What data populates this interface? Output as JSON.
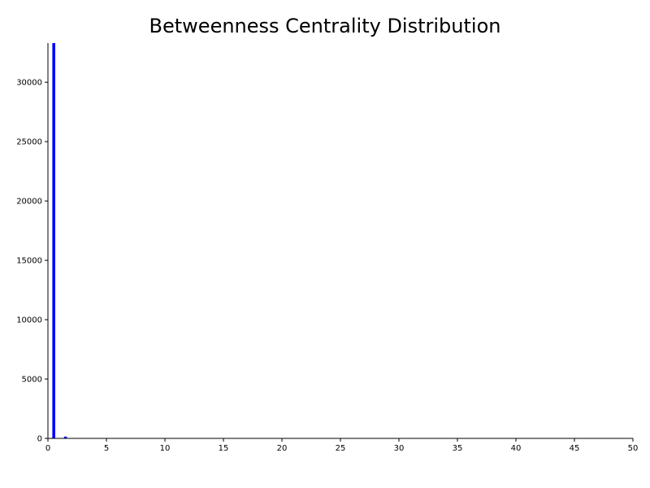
{
  "chart_data": {
    "type": "bar",
    "title": "Betweenness Centrality Distribution",
    "xlabel": "",
    "ylabel": "",
    "xlim": [
      0,
      50
    ],
    "ylim": [
      0,
      33300
    ],
    "x_ticks": [
      0,
      5,
      10,
      15,
      20,
      25,
      30,
      35,
      40,
      45,
      50
    ],
    "y_ticks": [
      0,
      5000,
      10000,
      15000,
      20000,
      25000,
      30000
    ],
    "bin_width": 0.25,
    "grid": false,
    "bar_color": "#0000ff",
    "bars": [
      {
        "x": 0.5,
        "value": 33300
      },
      {
        "x": 1.5,
        "value": 150
      }
    ]
  }
}
